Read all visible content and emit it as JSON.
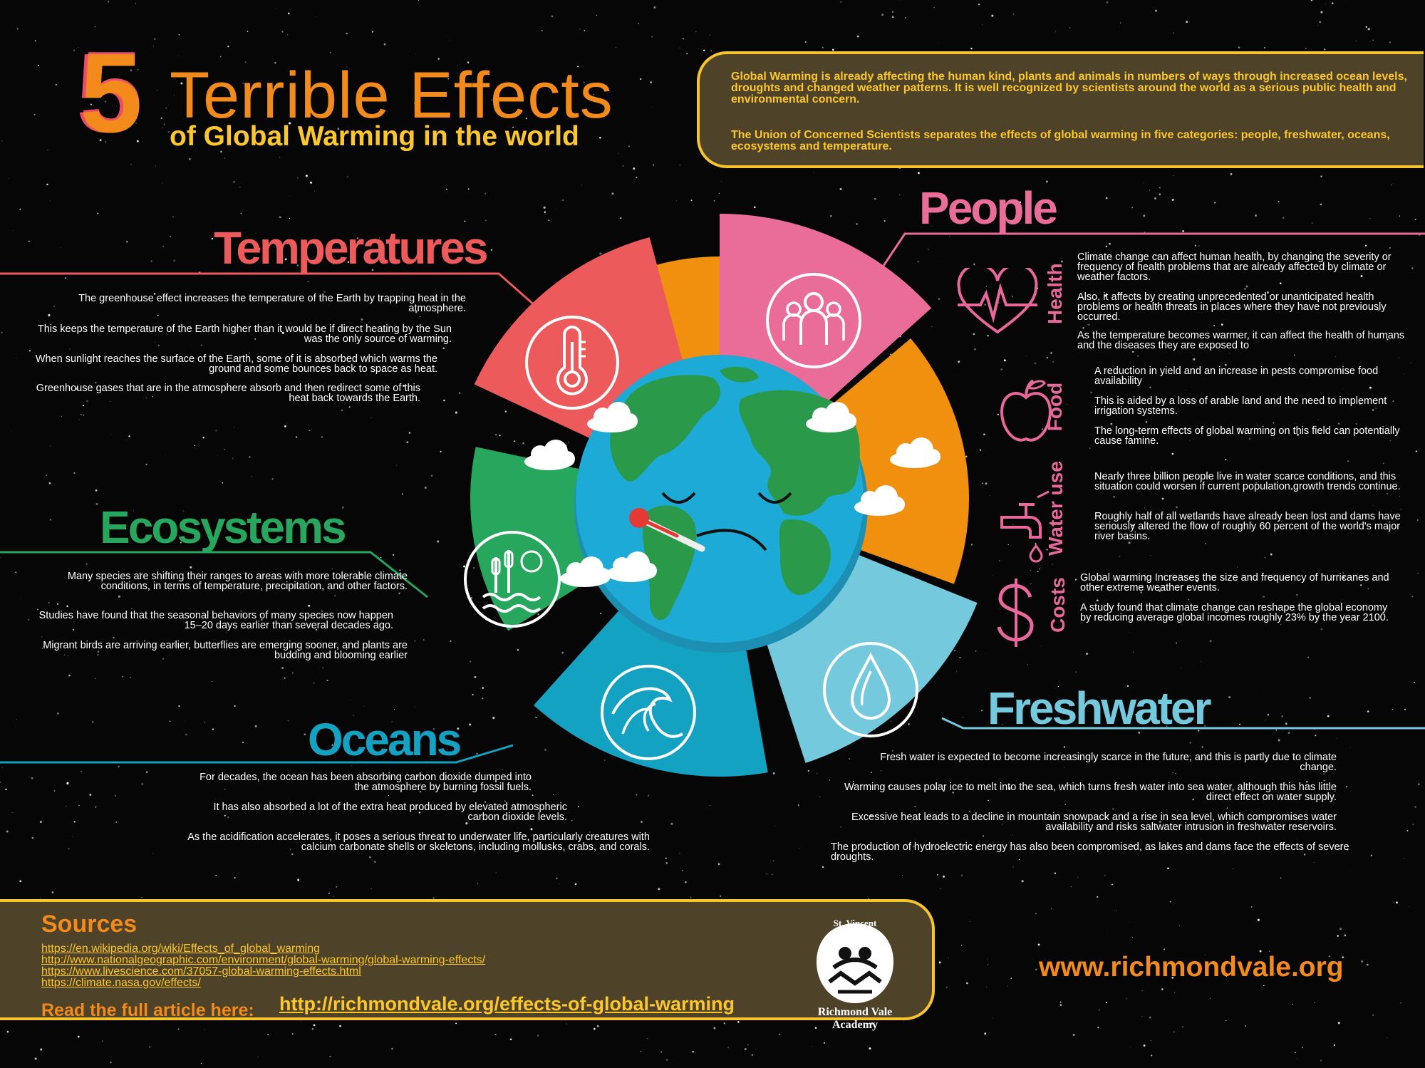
{
  "header": {
    "number": "5",
    "title": "Terrible Effects",
    "subtitle": "of Global Warming in the world"
  },
  "intro": {
    "p1": "Global Warming is already affecting the human kind, plants and animals in numbers of ways through increased ocean levels, droughts and changed weather patterns. It is well recognized by scientists around the world as a serious public health and environmental concern.",
    "p2": "The Union of Concerned Scientists separates the effects of global warming in five categories: people, freshwater, oceans, ecosystems and temperature."
  },
  "colors": {
    "temperatures": "#ec5a5c",
    "people": "#ea6c99",
    "ecosystems": "#27a65e",
    "oceans": "#14a2c2",
    "freshwater": "#75c9dc",
    "orange": "#f18f0e",
    "yellow": "#fcd02c",
    "globe_ocean": "#1eaad6",
    "globe_land": "#2a9a4a"
  },
  "temperatures": {
    "title": "Temperatures",
    "icon": "thermometer-icon",
    "paragraphs": [
      "The greenhouse effect increases the temperature of the Earth by trapping heat in the atmosphere.",
      "This keeps the temperature of the Earth higher than it would be if direct heating by the Sun was the only source of warming.",
      "When sunlight reaches the surface of the Earth, some of it is absorbed which warms the ground and some bounces back to space as heat.",
      "Greenhouse gases that are in the atmosphere absorb and then redirect some of this heat back towards the Earth."
    ]
  },
  "ecosystems": {
    "title": "Ecosystems",
    "icon": "reeds-icon",
    "paragraphs": [
      "Many species are shifting their ranges to areas with more tolerable climate conditions, in terms of temperature, precipitation, and other factors.",
      "Studies have found that the seasonal behaviors of many species now happen 15–20 days earlier than several decades ago.",
      "Migrant birds are arriving earlier, butterflies are emerging sooner, and plants are budding and blooming earlier"
    ]
  },
  "oceans": {
    "title": "Oceans",
    "icon": "wave-icon",
    "paragraphs": [
      "For decades, the ocean has been absorbing carbon dioxide dumped into the atmosphere by burning fossil fuels.",
      "It has also absorbed a lot of the extra heat produced by elevated atmospheric carbon dioxide levels.",
      "As the acidification accelerates, it poses a serious threat to underwater life, particularly creatures with calcium carbonate shells or skeletons, including mollusks, crabs, and corals."
    ]
  },
  "people": {
    "title": "People",
    "icon": "people-group-icon",
    "subsections": [
      {
        "label": "Health",
        "icon": "heart-pulse-icon",
        "paragraphs": [
          "Climate change can affect human health, by changing the severity or frequency of health problems that are already affected by climate or weather factors.",
          "Also, it affects by creating unprecedented or unanticipated health problems or health threats in places where they have not previously occurred.",
          "As the temperature becomes warmer, it can affect the health of humans and the diseases they are exposed to"
        ]
      },
      {
        "label": "Food",
        "icon": "apple-icon",
        "paragraphs": [
          "A reduction in yield and an increase in pests compromise food availability",
          "This is aided by a loss of arable land and the need to implement irrigation systems.",
          "The long-term effects of global warming on this field can potentially cause famine."
        ]
      },
      {
        "label": "Water use",
        "icon": "faucet-icon",
        "paragraphs": [
          "Nearly three billion people live in water scarce conditions, and this situation could worsen if current population growth trends continue.",
          "Roughly half of all wetlands have already been lost and dams have seriously altered the flow of roughly 60 percent of the world's major river basins."
        ]
      },
      {
        "label": "Costs",
        "icon": "dollar-icon",
        "paragraphs": [
          "Global warming Increases the size and frequency of hurricanes and other extreme weather events.",
          "A study found that climate change can reshape the global economy by reducing average global incomes roughly 23% by the year 2100."
        ]
      }
    ]
  },
  "freshwater": {
    "title": "Freshwater",
    "icon": "water-drop-icon",
    "paragraphs": [
      "Fresh water is expected to become increasingly scarce in the future, and this is partly due to climate change.",
      "Warming causes polar ice to melt into the sea, which turns fresh water into sea water, although this has little direct effect on water supply.",
      "Excessive heat leads to a decline in mountain snowpack and a rise in sea level, which compromises water availability and risks saltwater intrusion in freshwater reservoirs.",
      "The production of hydroelectric energy has also been compromised, as lakes and dams face the effects of severe droughts."
    ]
  },
  "sources": {
    "title": "Sources",
    "links": [
      "https://en.wikipedia.org/wiki/Effects_of_global_warming",
      "http://www.nationalgeographic.com/environment/global-warming/global-warming-effects/",
      "https://www.livescience.com/37057-global-warming-effects.html",
      "https://climate.nasa.gov/effects/"
    ],
    "read_label": "Read the full article here:",
    "read_url": "http://richmondvale.org/effects-of-global-warming"
  },
  "logo": {
    "top": "St. Vincent",
    "line1": "Richmond Vale",
    "line2": "Academy"
  },
  "website": "www.richmondvale.org"
}
